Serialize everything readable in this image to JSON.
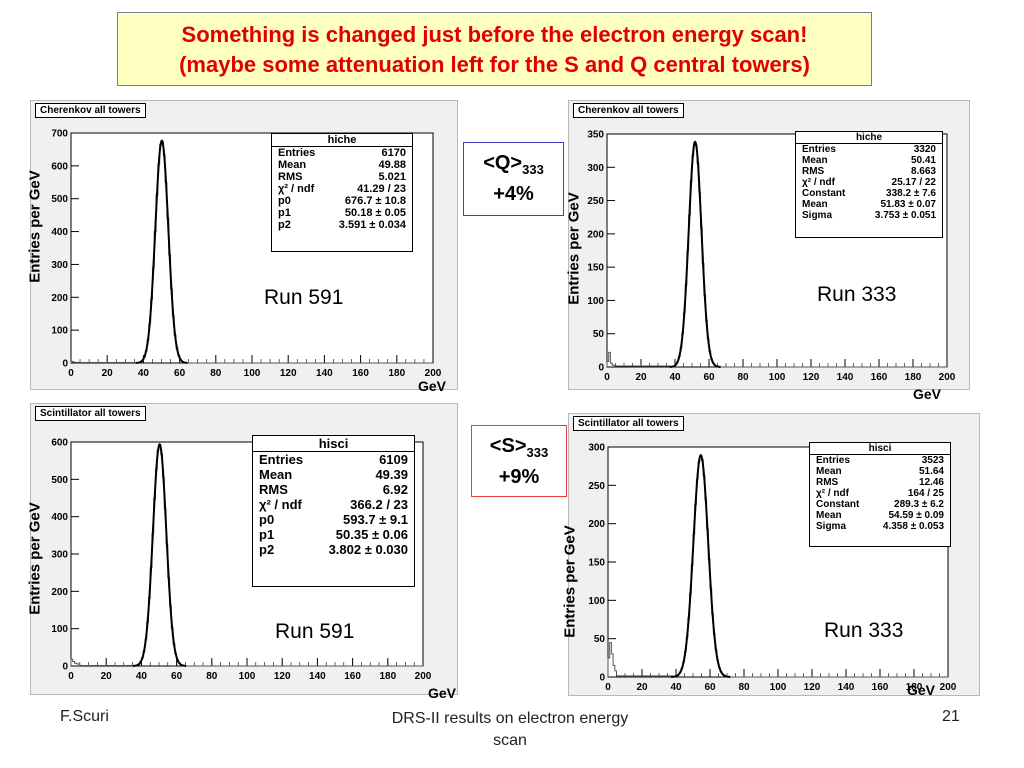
{
  "slide": {
    "title_line1": "Something is changed just before the electron energy scan!",
    "title_line2": "(maybe some attenuation left for the S and Q central towers)",
    "footer_left": "F.Scuri",
    "footer_center_line1": "DRS-II results on electron energy",
    "footer_center_line2": "scan",
    "footer_right": "21",
    "axis_unit": "GeV",
    "y_axis_label": "Entries per GeV"
  },
  "comparisons": [
    {
      "label": "<Q>",
      "sub": "333",
      "value": "+4%",
      "border_color": "#4040c0"
    },
    {
      "label": "<S>",
      "sub": "333",
      "value": "+9%",
      "border_color": "#e04040"
    }
  ],
  "chart_data": [
    {
      "type": "histogram",
      "title": "Cherenkov all towers",
      "run_label": "Run 591",
      "xlim": [
        0,
        200
      ],
      "ylim": [
        0,
        700
      ],
      "xticks": [
        0,
        20,
        40,
        60,
        80,
        100,
        120,
        140,
        160,
        180,
        200
      ],
      "yticks": [
        0,
        100,
        200,
        300,
        400,
        500,
        600,
        700
      ],
      "fit": {
        "amplitude": 676.7,
        "mean": 50.18,
        "sigma": 3.591
      },
      "stats": {
        "name": "hiche",
        "rows": [
          {
            "k": "Entries",
            "v": "6170"
          },
          {
            "k": "Mean",
            "v": "49.88"
          },
          {
            "k": "RMS",
            "v": "5.021"
          },
          {
            "k": "χ² / ndf",
            "v": "41.29 / 23"
          },
          {
            "k": "p0",
            "v": "676.7 ± 10.8"
          },
          {
            "k": "p1",
            "v": "50.18 ± 0.05"
          },
          {
            "k": "p2",
            "v": "3.591 ± 0.034"
          }
        ]
      },
      "low_tail": [
        5,
        3,
        2,
        2,
        2
      ]
    },
    {
      "type": "histogram",
      "title": "Cherenkov all towers",
      "run_label": "Run 333",
      "xlim": [
        0,
        200
      ],
      "ylim": [
        0,
        350
      ],
      "xticks": [
        0,
        20,
        40,
        60,
        80,
        100,
        120,
        140,
        160,
        180,
        200
      ],
      "yticks": [
        0,
        50,
        100,
        150,
        200,
        250,
        300,
        350
      ],
      "fit": {
        "amplitude": 338.2,
        "mean": 51.83,
        "sigma": 3.753
      },
      "stats": {
        "name": "hiche",
        "rows": [
          {
            "k": "Entries",
            "v": "3320"
          },
          {
            "k": "Mean",
            "v": "50.41"
          },
          {
            "k": "RMS",
            "v": "8.663"
          },
          {
            "k": "χ² / ndf",
            "v": "25.17 / 22"
          },
          {
            "k": "Constant",
            "v": "338.2 ± 7.6"
          },
          {
            "k": "Mean",
            "v": "51.83 ± 0.07"
          },
          {
            "k": "Sigma",
            "v": "3.753 ± 0.051"
          }
        ]
      },
      "low_tail": [
        8,
        22,
        6,
        3,
        2
      ]
    },
    {
      "type": "histogram",
      "title": "Scintillator all towers",
      "run_label": "Run 591",
      "xlim": [
        0,
        200
      ],
      "ylim": [
        0,
        600
      ],
      "xticks": [
        0,
        20,
        40,
        60,
        80,
        100,
        120,
        140,
        160,
        180,
        200
      ],
      "yticks": [
        0,
        100,
        200,
        300,
        400,
        500,
        600
      ],
      "fit": {
        "amplitude": 593.7,
        "mean": 50.35,
        "sigma": 3.802
      },
      "stats": {
        "name": "hisci",
        "rows": [
          {
            "k": "Entries",
            "v": "6109"
          },
          {
            "k": "Mean",
            "v": "49.39"
          },
          {
            "k": "RMS",
            "v": "6.92"
          },
          {
            "k": "χ² / ndf",
            "v": "366.2 / 23"
          },
          {
            "k": "p0",
            "v": "593.7 ± 9.1"
          },
          {
            "k": "p1",
            "v": "50.35 ± 0.06"
          },
          {
            "k": "p2",
            "v": "3.802 ± 0.030"
          }
        ]
      },
      "low_tail": [
        18,
        12,
        8,
        6,
        5
      ]
    },
    {
      "type": "histogram",
      "title": "Scintillator all towers",
      "run_label": "Run 333",
      "xlim": [
        0,
        200
      ],
      "ylim": [
        0,
        300
      ],
      "xticks": [
        0,
        20,
        40,
        60,
        80,
        100,
        120,
        140,
        160,
        180,
        200
      ],
      "yticks": [
        0,
        50,
        100,
        150,
        200,
        250,
        300
      ],
      "fit": {
        "amplitude": 289.3,
        "mean": 54.59,
        "sigma": 4.358
      },
      "stats": {
        "name": "hisci",
        "rows": [
          {
            "k": "Entries",
            "v": "3523"
          },
          {
            "k": "Mean",
            "v": "51.64"
          },
          {
            "k": "RMS",
            "v": "12.46"
          },
          {
            "k": "χ² / ndf",
            "v": "164 / 25"
          },
          {
            "k": "Constant",
            "v": "289.3 ± 6.2"
          },
          {
            "k": "Mean",
            "v": "54.59 ± 0.09"
          },
          {
            "k": "Sigma",
            "v": "4.358 ± 0.053"
          }
        ]
      },
      "low_tail": [
        25,
        45,
        30,
        15,
        8
      ]
    }
  ]
}
